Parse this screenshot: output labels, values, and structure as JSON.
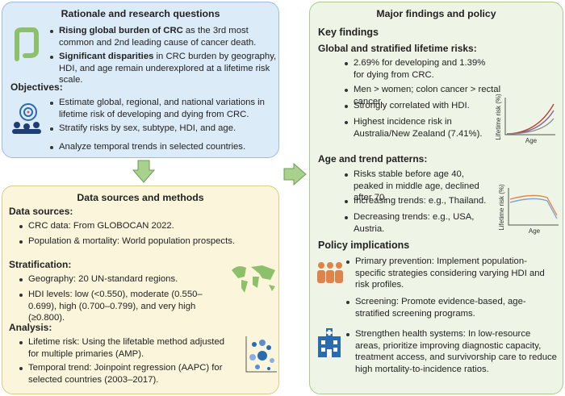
{
  "rationale": {
    "title": "Rationale and research questions",
    "bullets": [
      {
        "bold": "Rising global burden of CRC",
        "text": " as the 3rd most common and 2nd leading cause of cancer death."
      },
      {
        "bold": "Significant disparities",
        "text": " in CRC burden by geography, HDI, and age remain underexplored at a lifetime risk scale."
      }
    ],
    "objectives_heading": "Objectives:",
    "objectives": [
      "Estimate global, regional, and national variations in lifetime risk of developing and dying from CRC.",
      "Stratify risks by sex, subtype, HDI, and age.",
      "Analyze temporal trends in selected countries."
    ]
  },
  "methods": {
    "title": "Data sources and methods",
    "sections": [
      {
        "heading": "Data sources:",
        "items": [
          "CRC data: From GLOBOCAN 2022.",
          "Population & mortality: World population prospects."
        ]
      },
      {
        "heading": "Stratification:",
        "items": [
          "Geography: 20 UN-standard regions.",
          "HDI levels: low (<0.550), moderate (0.550–0.699), high (0.700–0.799), and very high (≥0.800)."
        ]
      },
      {
        "heading": "Analysis:",
        "items": [
          "Lifetime risk: Using the lifetable method adjusted for multiple primaries (AMP).",
          "Temporal trend: Joinpoint regression (AAPC) for selected countries (2003–2017)."
        ]
      }
    ]
  },
  "findings": {
    "title": "Major findings and policy",
    "key_findings": "Key findings",
    "sections": [
      {
        "heading": "Global and stratified lifetime risks:",
        "items": [
          "2.69% for developing and 1.39% for dying from CRC.",
          "Men > women; colon cancer > rectal cancer.",
          "Strongly correlated with HDI.",
          "Highest incidence risk in Australia/New Zealand (7.41%)."
        ]
      },
      {
        "heading": "Age and trend patterns:",
        "items": [
          "Risks stable before age 40, peaked in middle age, declined after 70.",
          "Increasing trends: e.g., Thailand.",
          "Decreasing trends: e.g., USA, Austria."
        ]
      }
    ],
    "charts": [
      {
        "y_label": "Lifetime risk (%)",
        "x_label": "Age"
      },
      {
        "y_label": "Lifetime risk (%)",
        "x_label": "Age"
      }
    ],
    "policy": {
      "heading": "Policy implications",
      "items": [
        "Primary prevention: Implement population-specific strategies considering varying HDI and risk profiles.",
        "Screening: Promote evidence-based, age-stratified screening programs.",
        "Strengthen health systems: In low-resource areas, prioritize improving diagnostic capacity, treatment access, and survivorship care to reduce high mortality-to-incidence ratios."
      ]
    }
  }
}
